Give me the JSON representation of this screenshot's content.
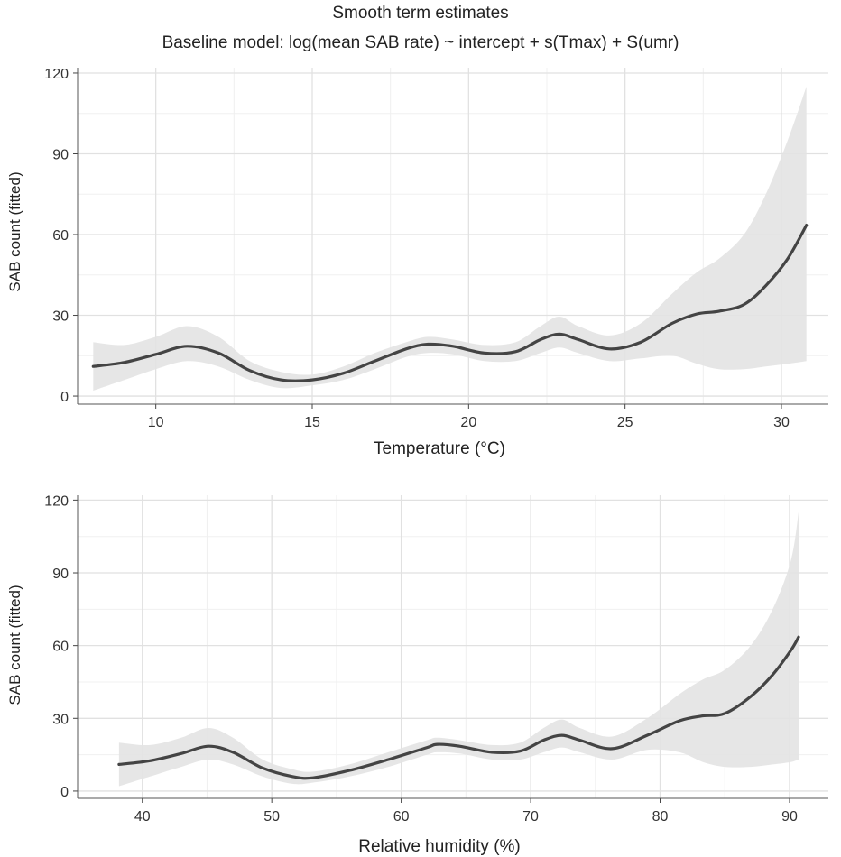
{
  "title": "Smooth term estimates",
  "subtitle": "Baseline model: log(mean SAB rate) ~ intercept + s(Tmax) + S(umr)",
  "chart_data": [
    {
      "type": "line",
      "xlabel": "Temperature (°C)",
      "ylabel": "SAB count (fitted)",
      "xlim": [
        7.5,
        31.5
      ],
      "ylim": [
        -3,
        122
      ],
      "xticks": [
        10,
        15,
        20,
        25,
        30
      ],
      "yticks": [
        0,
        30,
        60,
        90,
        120
      ],
      "grid": true,
      "series": [
        {
          "type": "line",
          "x": [
            8,
            9,
            10,
            11,
            12,
            13,
            14,
            15,
            16,
            17,
            18,
            18.7,
            19.5,
            20.5,
            21.5,
            22.3,
            22.9,
            23.5,
            24.5,
            25.5,
            26.5,
            27.3,
            28,
            28.8,
            29.5,
            30.2,
            30.8
          ],
          "y": [
            11,
            12.5,
            15.5,
            18.5,
            16,
            9.5,
            6,
            6,
            8.5,
            13,
            17.5,
            19.3,
            18.5,
            16,
            16.5,
            21,
            23,
            21,
            17.5,
            20,
            27,
            30.5,
            31.5,
            34,
            41,
            51,
            63.5
          ]
        },
        {
          "type": "area",
          "x": [
            8,
            9,
            10,
            11,
            12,
            13,
            14,
            15,
            16,
            17,
            18,
            18.7,
            19.5,
            20.5,
            21.5,
            22.3,
            22.9,
            23.5,
            24.5,
            25.5,
            26.5,
            27.3,
            28,
            28.8,
            29.5,
            30.2,
            30.8
          ],
          "upper": [
            20,
            19,
            22,
            26,
            22,
            13,
            9,
            8,
            11,
            16,
            20,
            22,
            21,
            19,
            20,
            26,
            29.5,
            26,
            22.5,
            27,
            38,
            46,
            51,
            60,
            75,
            95,
            115
          ],
          "lower": [
            2,
            6,
            10,
            13,
            11,
            6,
            3,
            4,
            6,
            10,
            14.5,
            16,
            15.5,
            13,
            13,
            16,
            18,
            16,
            13,
            14,
            15,
            12,
            10,
            10,
            11,
            12,
            13
          ]
        }
      ]
    },
    {
      "type": "line",
      "xlabel": "Relative humidity (%)",
      "ylabel": "SAB count (fitted)",
      "xlim": [
        35,
        93
      ],
      "ylim": [
        -3,
        122
      ],
      "xticks": [
        40,
        50,
        60,
        70,
        80,
        90
      ],
      "yticks": [
        0,
        30,
        60,
        90,
        120
      ],
      "grid": true,
      "series": [
        {
          "type": "line",
          "x": [
            38.2,
            40.6,
            43,
            45.1,
            47,
            49.3,
            51.6,
            53.2,
            56,
            59,
            62,
            62.8,
            64.5,
            67,
            69.2,
            71,
            72.4,
            73.8,
            76.3,
            79,
            81.5,
            83.3,
            85,
            87,
            88.7,
            90.1,
            90.7
          ],
          "y": [
            11,
            12.5,
            15.5,
            18.5,
            16,
            9.5,
            6,
            5.5,
            8.5,
            13,
            18,
            19.3,
            18.5,
            16,
            16.5,
            21,
            23,
            21,
            17.5,
            23,
            29,
            31,
            32,
            39,
            48,
            58,
            63.5
          ]
        },
        {
          "type": "area",
          "x": [
            38.2,
            40.6,
            43,
            45.1,
            47,
            49.3,
            51.6,
            53.2,
            56,
            59,
            62,
            62.8,
            64.5,
            67,
            69.2,
            71,
            72.4,
            73.8,
            76.3,
            79,
            81.5,
            83.3,
            85,
            87,
            88.7,
            90.1,
            90.7
          ],
          "upper": [
            20,
            19,
            22,
            26,
            22,
            13,
            9,
            8,
            11,
            16,
            21,
            22,
            21,
            19,
            20,
            26,
            29.5,
            26,
            22.5,
            30,
            40,
            46,
            50,
            60,
            75,
            95,
            115
          ],
          "lower": [
            2,
            6,
            10,
            13,
            11,
            6,
            3,
            3.5,
            6,
            10,
            15,
            16,
            15.5,
            13,
            13,
            16,
            18,
            16,
            13,
            17,
            16,
            12,
            10,
            10,
            11,
            12,
            13
          ]
        }
      ]
    }
  ]
}
